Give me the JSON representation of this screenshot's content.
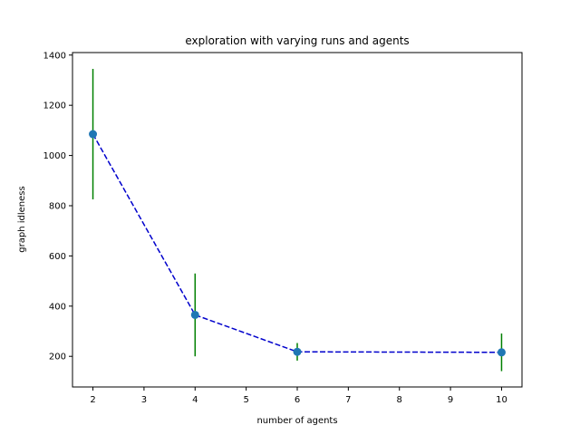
{
  "chart_data": {
    "type": "line",
    "title": "exploration with varying runs and agents",
    "xlabel": "number of agents",
    "ylabel": "graph idleness",
    "xlim": [
      1.6,
      10.4
    ],
    "ylim": [
      78,
      1410
    ],
    "xticks": [
      2,
      3,
      4,
      5,
      6,
      7,
      8,
      9,
      10
    ],
    "yticks": [
      200,
      400,
      600,
      800,
      1000,
      1200,
      1400
    ],
    "grid": false,
    "legend": "none",
    "series": [
      {
        "x": [
          2,
          4,
          6,
          10
        ],
        "y": [
          1085,
          365,
          218,
          216
        ],
        "yerr": [
          260,
          165,
          35,
          75
        ],
        "line_style": "dashed",
        "line_color": "#0000cc",
        "marker_color": "#1f77b4",
        "errorbar_color": "#008000"
      }
    ]
  }
}
